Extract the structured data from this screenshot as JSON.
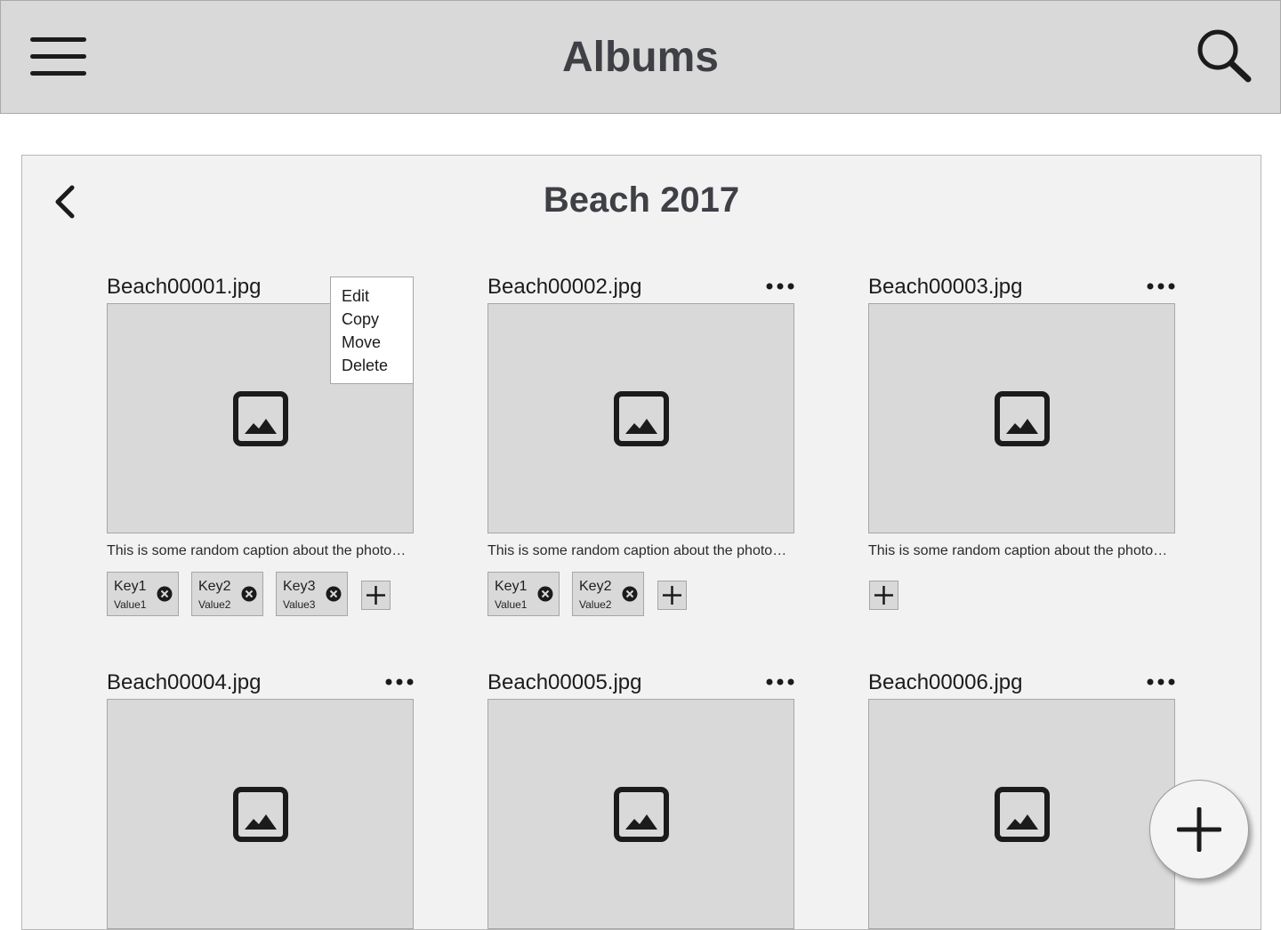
{
  "header": {
    "title": "Albums",
    "menu_icon": "hamburger-menu-icon",
    "search_icon": "search-icon"
  },
  "album": {
    "title": "Beach 2017",
    "back_icon": "chevron-left-icon"
  },
  "context_menu": {
    "items": [
      "Edit",
      "Copy",
      "Move",
      "Delete"
    ]
  },
  "photos": [
    {
      "name": "Beach00001.jpg",
      "caption": "This is some random caption about the photo…",
      "tags": [
        {
          "key": "Key1",
          "value": "Value1"
        },
        {
          "key": "Key2",
          "value": "Value2"
        },
        {
          "key": "Key3",
          "value": "Value3"
        }
      ]
    },
    {
      "name": "Beach00002.jpg",
      "caption": "This is some random caption about the photo…",
      "tags": [
        {
          "key": "Key1",
          "value": "Value1"
        },
        {
          "key": "Key2",
          "value": "Value2"
        }
      ]
    },
    {
      "name": "Beach00003.jpg",
      "caption": "This is some random caption about the photo…",
      "tags": []
    },
    {
      "name": "Beach00004.jpg"
    },
    {
      "name": "Beach00005.jpg"
    },
    {
      "name": "Beach00006.jpg"
    }
  ],
  "fab_icon": "plus-icon",
  "colors": {
    "header_bg": "#d9d9d9",
    "panel_bg": "#f2f2f2",
    "placeholder_bg": "#d9d9d9",
    "title_text": "#3e4045"
  }
}
